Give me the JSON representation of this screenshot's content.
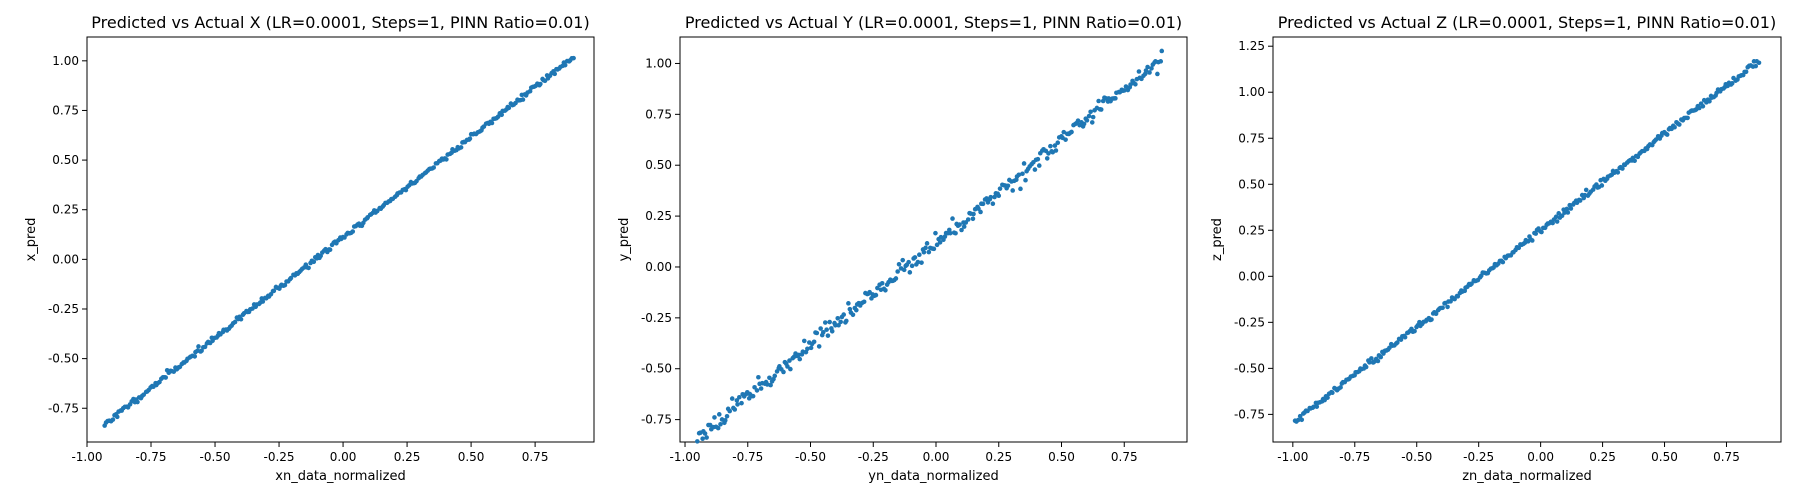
{
  "colors": {
    "point": "#1f77b4",
    "axis": "#000000",
    "background": "#ffffff"
  },
  "chart_data": [
    {
      "type": "scatter",
      "title": "Predicted vs Actual X (LR=0.0001, Steps=1, PINN Ratio=0.01)",
      "xlabel": "xn_data_normalized",
      "ylabel": "x_pred",
      "xlim": [
        -1.0,
        0.98
      ],
      "ylim": [
        -0.92,
        1.12
      ],
      "xticks": [
        "-1.00",
        "-0.75",
        "-0.50",
        "-0.25",
        "0.00",
        "0.25",
        "0.50",
        "0.75"
      ],
      "yticks": [
        "-0.75",
        "-0.50",
        "-0.25",
        "0.00",
        "0.25",
        "0.50",
        "0.75",
        "1.00"
      ],
      "fit": {
        "slope": 1.011,
        "intercept": 0.1107,
        "noise": 0.007
      },
      "x_range": [
        -0.93,
        0.9
      ],
      "n_points": 300,
      "seed": 11
    },
    {
      "type": "scatter",
      "title": "Predicted vs Actual Y (LR=0.0001, Steps=1, PINN Ratio=0.01)",
      "xlabel": "yn_data_normalized",
      "ylabel": "y_pred",
      "xlim": [
        -1.02,
        1.0
      ],
      "ylim": [
        -0.86,
        1.13
      ],
      "xticks": [
        "-1.00",
        "-0.75",
        "-0.50",
        "-0.25",
        "0.00",
        "0.25",
        "0.50",
        "0.75"
      ],
      "yticks": [
        "-0.75",
        "-0.50",
        "-0.25",
        "0.00",
        "0.25",
        "0.50",
        "0.75",
        "1.00"
      ],
      "fit": {
        "slope": 1.0,
        "intercept": 0.12,
        "noise": 0.02
      },
      "x_range": [
        -0.95,
        0.9
      ],
      "n_points": 300,
      "seed": 23
    },
    {
      "type": "scatter",
      "title": "Predicted vs Actual Z (LR=0.0001, Steps=1, PINN Ratio=0.01)",
      "xlabel": "zn_data_normalized",
      "ylabel": "z_pred",
      "xlim": [
        -1.08,
        0.97
      ],
      "ylim": [
        -0.9,
        1.3
      ],
      "xticks": [
        "-1.00",
        "-0.75",
        "-0.50",
        "-0.25",
        "0.00",
        "0.25",
        "0.50",
        "0.75"
      ],
      "yticks": [
        "-0.75",
        "-0.50",
        "-0.25",
        "0.00",
        "0.25",
        "0.50",
        "0.75",
        "1.00",
        "1.25"
      ],
      "fit": {
        "slope": 1.048,
        "intercept": 0.2493,
        "noise": 0.009
      },
      "x_range": [
        -0.99,
        0.88
      ],
      "n_points": 300,
      "seed": 37
    }
  ]
}
